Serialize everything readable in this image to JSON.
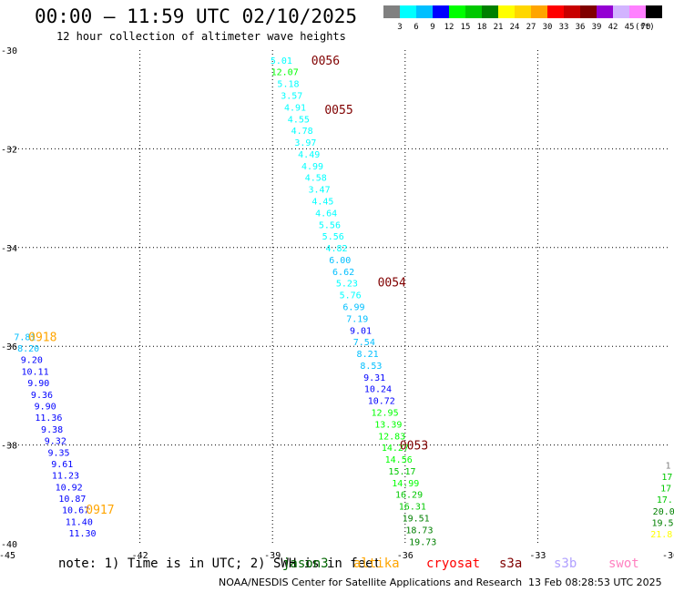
{
  "header": {
    "title": "00:00 – 11:59 UTC 02/10/2025",
    "subtitle": "12 hour collection of altimeter wave heights"
  },
  "legend": {
    "unit": "(ft)",
    "colors": [
      "#808080",
      "#00ffff",
      "#00bfff",
      "#0000ff",
      "#00ff00",
      "#00c800",
      "#008000",
      "#ffff00",
      "#ffd700",
      "#ffa500",
      "#ff0000",
      "#c80000",
      "#800000",
      "#9400d3",
      "#d2b4ff",
      "#ff80ff",
      "#000000"
    ],
    "labels": [
      "3",
      "6",
      "9",
      "12",
      "15",
      "18",
      "21",
      "24",
      "27",
      "30",
      "33",
      "36",
      "39",
      "42",
      "45",
      "70"
    ]
  },
  "map": {
    "lon_ticks": [
      "-45",
      "-42",
      "-39",
      "-36",
      "-33",
      "-30"
    ],
    "lat_ticks": [
      "-30",
      "-32",
      "-34",
      "-36",
      "-38",
      "-40"
    ],
    "lon_range": [
      -45,
      -30
    ],
    "lat_range": [
      -40,
      -30
    ]
  },
  "chart_data": {
    "type": "scatter",
    "passes": [
      {
        "label": "0056",
        "label_lon": -37.8,
        "label_lat": -30.2,
        "color": "#800000"
      },
      {
        "label": "0055",
        "label_lon": -37.5,
        "label_lat": -31.2,
        "color": "#800000"
      },
      {
        "label": "0054",
        "label_lon": -36.3,
        "label_lat": -34.7,
        "color": "#800000"
      },
      {
        "label": "0053",
        "label_lon": -35.8,
        "label_lat": -38.0,
        "color": "#800000"
      },
      {
        "label": "0918",
        "label_lon": -44.2,
        "label_lat": -35.8,
        "color": "#ffa500"
      },
      {
        "label": "0917",
        "label_lon": -42.9,
        "label_lat": -39.3,
        "color": "#ffa500"
      }
    ],
    "tracks": [
      {
        "values": [
          "5.01",
          "12.07",
          "5.18",
          "3.57",
          "4.91",
          "4.55",
          "4.78",
          "3.97",
          "4.49",
          "4.99",
          "4.58",
          "3.47",
          "4.45",
          "4.64",
          "5.56",
          "5.56",
          "4.82",
          "6.00",
          "6.62",
          "5.23",
          "5.76",
          "6.99",
          "7.19",
          "9.01",
          "7.54",
          "8.21",
          "8.53",
          "9.31",
          "10.24",
          "10.72",
          "12.95",
          "13.39",
          "12.83",
          "14.27",
          "14.56",
          "15.17",
          "14.99",
          "16.29",
          "16.31",
          "19.51",
          "18.73",
          "19.73"
        ],
        "lon_start": -38.8,
        "lat_start": -30.2,
        "lon_end": -35.6,
        "lat_end": -39.95
      },
      {
        "values": [
          "7.81",
          "8.20",
          "9.20",
          "10.11",
          "9.90",
          "9.36",
          "9.90",
          "11.36",
          "9.38",
          "9.32",
          "9.35",
          "9.61",
          "11.23",
          "10.92",
          "10.87",
          "10.67",
          "11.40",
          "11.30"
        ],
        "lon_start": -44.6,
        "lat_start": -35.8,
        "lon_end": -43.3,
        "lat_end": -39.78
      },
      {
        "values": [
          "1",
          "17",
          "17",
          "17.",
          "20.0",
          "19.5",
          "21.8"
        ],
        "lon_start": -30.05,
        "lat_start": -38.4,
        "lon_end": -30.2,
        "lat_end": -39.8
      }
    ]
  },
  "footer": {
    "note": "note: 1) Time is in UTC; 2) SWH is in feet",
    "missions": [
      {
        "name": "jason3",
        "color": "#006400"
      },
      {
        "name": "altika",
        "color": "#ffa500"
      },
      {
        "name": "cryosat",
        "color": "#ff0000"
      },
      {
        "name": "s3a",
        "color": "#800000"
      },
      {
        "name": "s3b",
        "color": "#b0a0ff"
      },
      {
        "name": "swot",
        "color": "#ff80c0"
      }
    ],
    "credit": "NOAA/NESDIS Center for Satellite Applications and Research",
    "timestamp": "13 Feb 08:28:53 UTC 2025"
  }
}
